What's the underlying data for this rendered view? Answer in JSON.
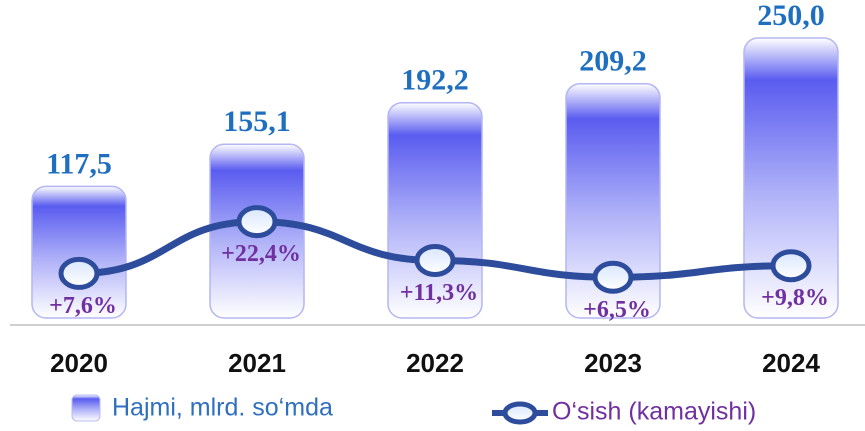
{
  "chart_data": {
    "type": "bar_line",
    "categories": [
      "2020",
      "2021",
      "2022",
      "2023",
      "2024"
    ],
    "series": [
      {
        "name": "Hajmi, mlrd. so‘mda",
        "type": "bar",
        "color": "#6b6cf2",
        "values": [
          117.5,
          155.1,
          192.2,
          209.2,
          250.0
        ],
        "value_labels": [
          "117,5",
          "155,1",
          "192,2",
          "209,2",
          "250,0"
        ]
      },
      {
        "name": "O‘sish (kamayishi)",
        "type": "line",
        "axis": "y2",
        "color": "#2e4c9c",
        "values": [
          7.6,
          22.4,
          11.3,
          6.5,
          9.8
        ],
        "value_labels": [
          "+7,6%",
          "+22,4%",
          "+11,3%",
          "+6,5%",
          "+9,8%"
        ]
      }
    ],
    "ylim": [
      0,
      250
    ],
    "y2lim": [
      0,
      30
    ],
    "grid": false,
    "legend": "bottom"
  }
}
